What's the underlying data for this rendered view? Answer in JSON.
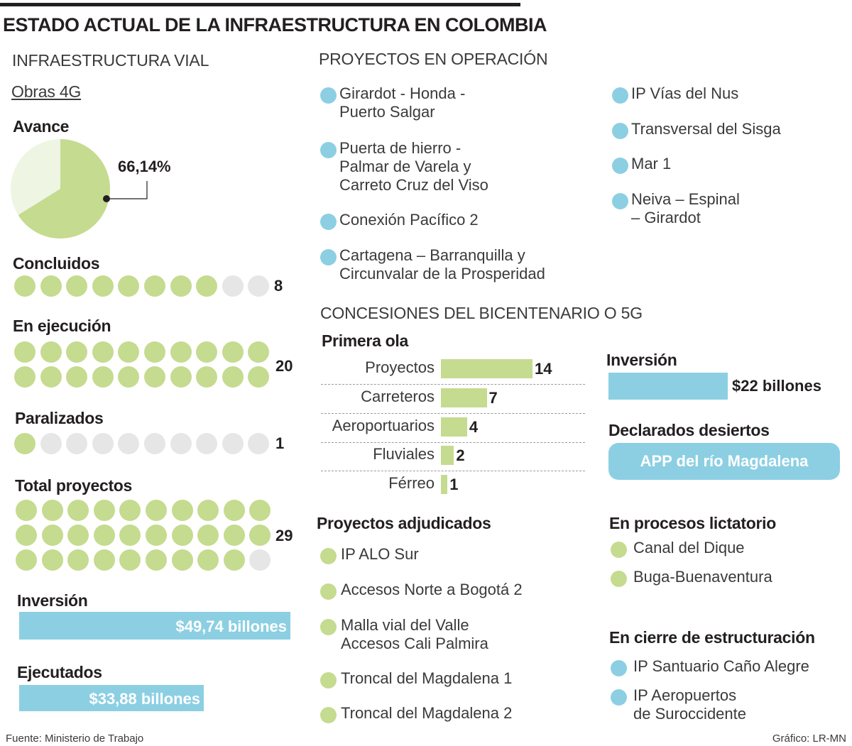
{
  "title": "ESTADO ACTUAL DE LA INFRAESTRUCTURA EN COLOMBIA",
  "left": {
    "section": "INFRAESTRUCTURA VIAL",
    "subsection": "Obras 4G",
    "avance": {
      "label": "Avance",
      "value_label": "66,14%",
      "percent": 66.14
    },
    "dot_groups": [
      {
        "label": "Concluidos",
        "count": 8,
        "count_label": "8",
        "slots": 10
      },
      {
        "label": "En ejecución",
        "count": 20,
        "count_label": "20",
        "slots": 20
      },
      {
        "label": "Paralizados",
        "count": 1,
        "count_label": "1",
        "slots": 10
      },
      {
        "label": "Total proyectos",
        "count": 29,
        "count_label": "29",
        "slots": 30
      }
    ],
    "inversion": {
      "label": "Inversión",
      "value_label": "$49,74 billones",
      "value": 49.74
    },
    "ejecutados": {
      "label": "Ejecutados",
      "value_label": "$33,88 billones",
      "value": 33.88
    }
  },
  "operacion": {
    "section": "PROYECTOS EN OPERACIÓN",
    "col1": [
      [
        "Girardot - Honda -",
        "Puerto Salgar"
      ],
      [
        "Puerta de hierro -",
        "Palmar de Varela y",
        "Carreto Cruz del Viso"
      ],
      [
        "Conexión Pacífico 2"
      ],
      [
        "Cartagena – Barranquilla y",
        "Circunvalar de la Prosperidad"
      ]
    ],
    "col2": [
      [
        "IP Vías del Nus"
      ],
      [
        "Transversal del Sisga"
      ],
      [
        "Mar 1"
      ],
      [
        "Neiva – Espinal",
        "– Girardot"
      ]
    ]
  },
  "concesiones": {
    "section": "CONCESIONES DEL BICENTENARIO O 5G",
    "primera_ola": "Primera ola",
    "inversion_label": "Inversión",
    "inversion_value_label": "$22 billones",
    "desiertos_label": "Declarados desiertos",
    "desiertos_item": "APP del río Magdalena",
    "adjudicados_label": "Proyectos adjudicados",
    "adjudicados": [
      [
        "IP ALO Sur"
      ],
      [
        "Accesos Norte a Bogotá 2"
      ],
      [
        "Malla vial del Valle",
        "Accesos Cali Palmira"
      ],
      [
        "Troncal del Magdalena 1"
      ],
      [
        "Troncal del Magdalena 2"
      ]
    ],
    "licitatorio_label": "En procesos lictatorio",
    "licitatorio": [
      [
        "Canal del Dique"
      ],
      [
        "Buga-Buenaventura"
      ]
    ],
    "estructuracion_label": "En cierre de estructuración",
    "estructuracion": [
      [
        "IP Santuario Caño Alegre"
      ],
      [
        "IP Aeropuertos",
        "de Suroccidente"
      ]
    ]
  },
  "chart_data": [
    {
      "type": "pie",
      "title": "Avance",
      "labels": [
        "Avance",
        ""
      ],
      "values": [
        66.14,
        33.86
      ],
      "data_labels": [
        "66,14%"
      ]
    },
    {
      "type": "bar",
      "title": "Primera ola",
      "orientation": "horizontal",
      "categories": [
        "Proyectos",
        "Carreteros",
        "Aeroportuarios",
        "Fluviales",
        "Férreo"
      ],
      "values": [
        14,
        7,
        4,
        2,
        1
      ],
      "data_labels": [
        "14",
        "7",
        "4",
        "2",
        "1"
      ]
    }
  ],
  "colors": {
    "green": "#c5db8f",
    "gray": "#e6e6e6",
    "blue": "#8ccfe3",
    "pale_green": "#eef5e3",
    "text": "#231f20"
  },
  "footer": {
    "source": "Fuente: Ministerio de Trabajo",
    "credit": "Gráfico: LR-MN"
  }
}
